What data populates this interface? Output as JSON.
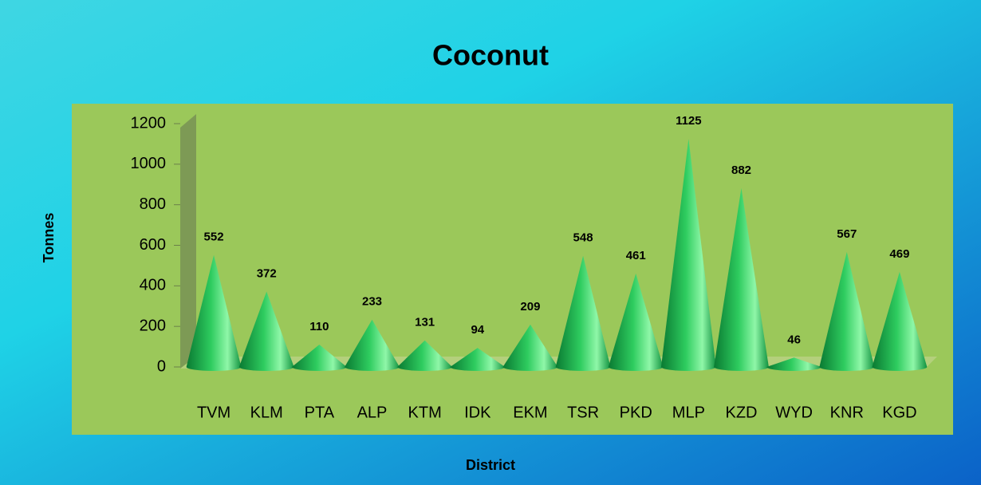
{
  "chart_data": {
    "type": "bar",
    "title": "Coconut",
    "x_label": "District",
    "y_label": "Tonnes",
    "categories": [
      "TVM",
      "KLM",
      "PTA",
      "ALP",
      "KTM",
      "IDK",
      "EKM",
      "TSR",
      "PKD",
      "MLP",
      "KZD",
      "WYD",
      "KNR",
      "KGD"
    ],
    "values": [
      552,
      372,
      110,
      233,
      131,
      94,
      209,
      548,
      461,
      1125,
      882,
      46,
      567,
      469
    ],
    "color": "#2ecc5f",
    "ylim": [
      0,
      1200
    ],
    "yticks": [
      0,
      200,
      400,
      600,
      800,
      1000,
      1200
    ],
    "grid": false
  }
}
